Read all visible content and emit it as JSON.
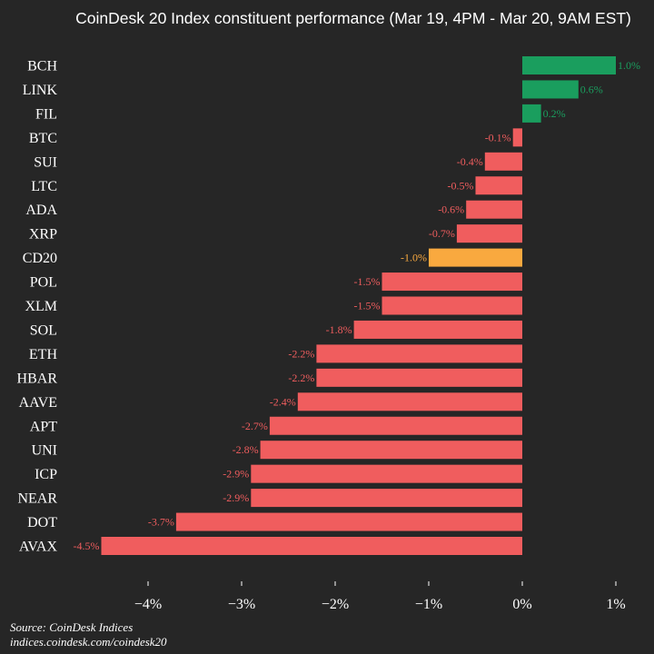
{
  "chart_data": {
    "type": "bar",
    "orientation": "horizontal",
    "title": "CoinDesk 20 Index constituent performance (Mar 19, 4PM - Mar 20, 9AM EST)",
    "categories": [
      "BCH",
      "LINK",
      "FIL",
      "BTC",
      "SUI",
      "LTC",
      "ADA",
      "XRP",
      "CD20",
      "POL",
      "XLM",
      "SOL",
      "ETH",
      "HBAR",
      "AAVE",
      "APT",
      "UNI",
      "ICP",
      "NEAR",
      "DOT",
      "AVAX"
    ],
    "values": [
      1.0,
      0.6,
      0.2,
      -0.1,
      -0.4,
      -0.5,
      -0.6,
      -0.7,
      -1.0,
      -1.5,
      -1.5,
      -1.8,
      -2.2,
      -2.2,
      -2.4,
      -2.7,
      -2.8,
      -2.9,
      -2.9,
      -3.7,
      -4.5
    ],
    "labels": [
      "1.0%",
      "0.6%",
      "0.2%",
      "-0.1%",
      "-0.4%",
      "-0.5%",
      "-0.6%",
      "-0.7%",
      "-1.0%",
      "-1.5%",
      "-1.5%",
      "-1.8%",
      "-2.2%",
      "-2.2%",
      "-2.4%",
      "-2.7%",
      "-2.8%",
      "-2.9%",
      "-2.9%",
      "-3.7%",
      "-4.5%"
    ],
    "xticks": [
      -4,
      -3,
      -2,
      -1,
      0,
      1
    ],
    "xtick_labels": [
      "−4%",
      "−3%",
      "−2%",
      "−1%",
      "0%",
      "1%"
    ],
    "xlim": [
      -4.6,
      1.0
    ],
    "grid": false,
    "highlight_category": "CD20",
    "colors": {
      "positive": "#1a9e5e",
      "negative": "#f05d5e",
      "highlight": "#f9a93f",
      "background": "#262626"
    }
  },
  "footer": {
    "source": "Source: CoinDesk Indices",
    "url": "indices.coindesk.com/coindesk20"
  }
}
